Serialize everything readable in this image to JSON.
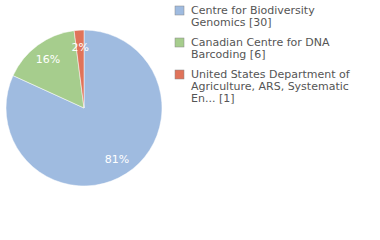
{
  "chart_data": {
    "type": "pie",
    "categories": [
      "Centre for Biodiversity Genomics [30]",
      "Canadian Centre for DNA Barcoding [6]",
      "United States Department of Agriculture, ARS, Systematic En... [1]"
    ],
    "values": [
      81,
      16,
      2
    ],
    "value_labels": [
      "81%",
      "16%",
      "2%"
    ],
    "colors": [
      "#9fbbe0",
      "#a6cd8d",
      "#e0735a"
    ],
    "data_labels": true,
    "legend": "right"
  }
}
